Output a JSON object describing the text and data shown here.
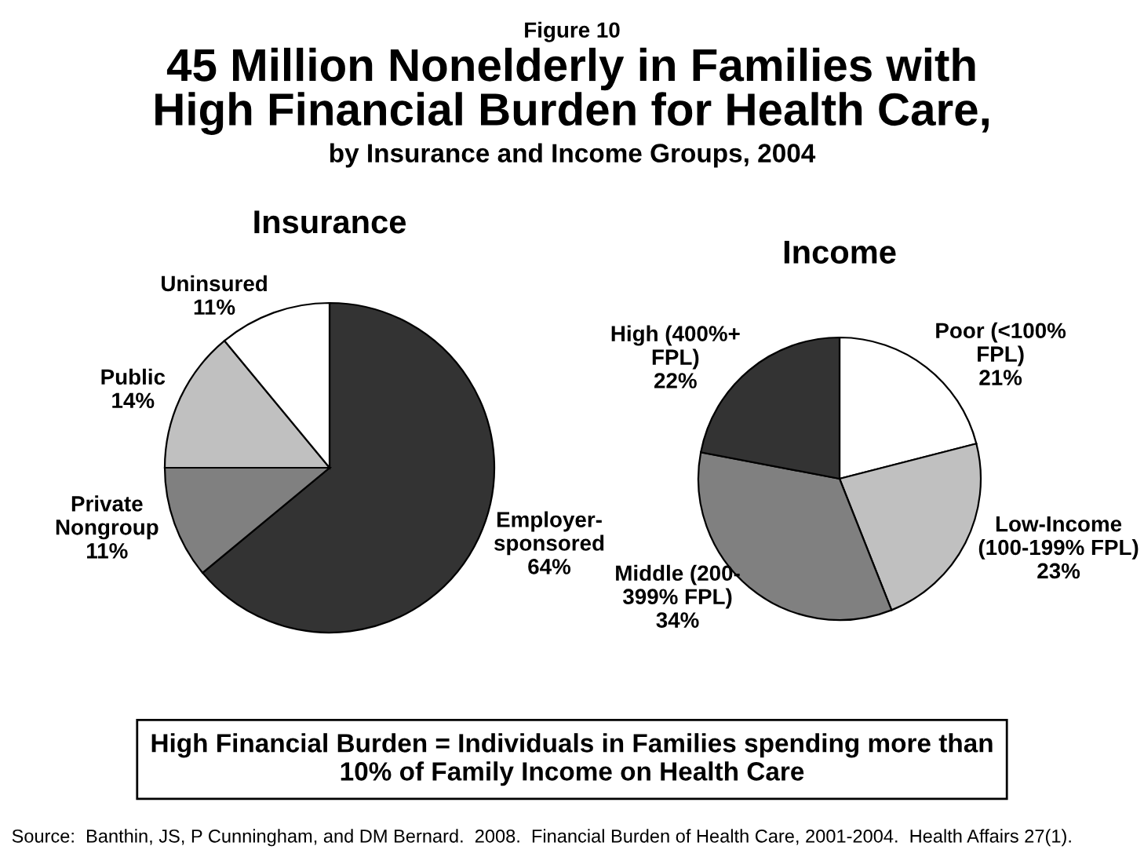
{
  "chart_data": [
    {
      "type": "pie",
      "title": "Insurance",
      "categories": [
        "Employer-\nsponsored",
        "Private\nNongroup",
        "Public",
        "Uninsured"
      ],
      "values": [
        64,
        11,
        14,
        11
      ],
      "value_labels": [
        "64%",
        "11%",
        "14%",
        "11%"
      ],
      "colors": [
        "#333333",
        "#808080",
        "#c0c0c0",
        "#ffffff"
      ],
      "annotations": [
        "Figure 10",
        "45 Million Nonelderly in Families with\nHigh Financial Burden for Health Care,",
        "by Insurance and Income Groups, 2004",
        "High Financial Burden = Individuals in Families spending more than\n10% of Family Income on Health Care",
        "Source:  Banthin, JS, P Cunningham, and DM Bernard.  2008.  Financial Burden of Health Care, 2001-2004.  Health Affairs 27(1)."
      ]
    },
    {
      "type": "pie",
      "title": "Income",
      "categories": [
        "Poor (<100%\nFPL)",
        "Low-Income\n(100-199% FPL)",
        "Middle (200-\n399% FPL)",
        "High (400%+\nFPL)"
      ],
      "values": [
        21,
        23,
        34,
        22
      ],
      "value_labels": [
        "21%",
        "23%",
        "34%",
        "22%"
      ],
      "colors": [
        "#ffffff",
        "#c0c0c0",
        "#808080",
        "#333333"
      ]
    }
  ]
}
